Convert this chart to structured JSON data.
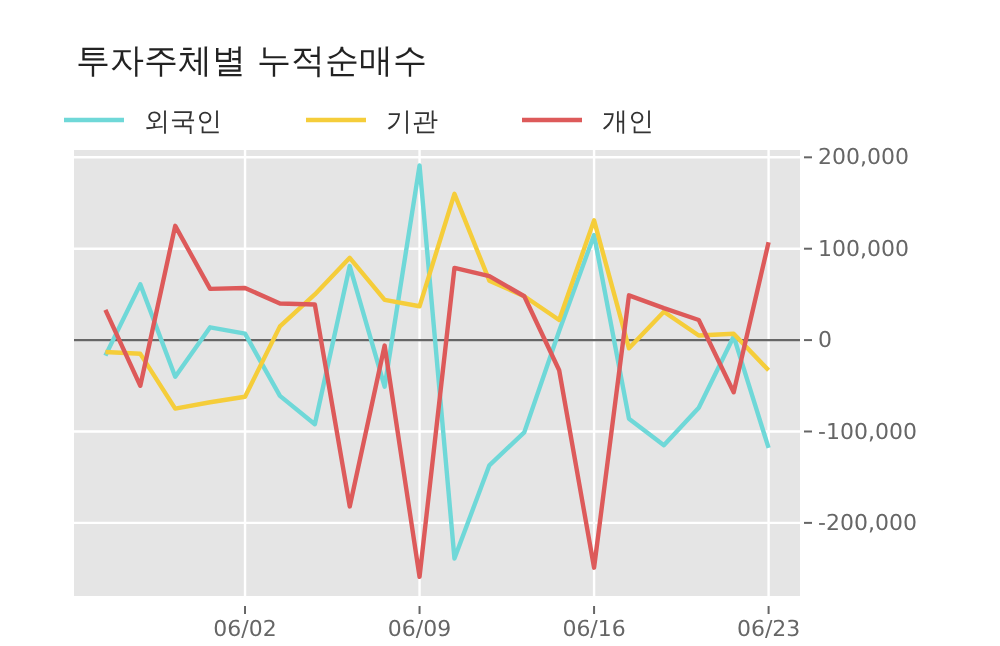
{
  "chart_data": {
    "type": "line",
    "title": "투자주체별 누적순매수",
    "categories": [
      null,
      null,
      null,
      null,
      "06/02",
      null,
      null,
      null,
      null,
      "06/09",
      null,
      null,
      null,
      null,
      "06/16",
      null,
      null,
      null,
      null,
      "06/23"
    ],
    "series": [
      {
        "name": "외국인",
        "color": "#6fd8d8",
        "values": [
          -17000,
          61000,
          -40000,
          14000,
          7000,
          -61000,
          -92000,
          81000,
          -51000,
          191000,
          -239000,
          -137000,
          -101000,
          10000,
          115000,
          -86000,
          -115000,
          -74000,
          4000,
          -118000
        ]
      },
      {
        "name": "기관",
        "color": "#f5cd3a",
        "values": [
          -13000,
          -15000,
          -75000,
          -68000,
          -62000,
          15000,
          50000,
          90000,
          44000,
          37000,
          160000,
          65000,
          48000,
          22000,
          131000,
          -9000,
          31000,
          5000,
          7000,
          -33000
        ]
      },
      {
        "name": "개인",
        "color": "#dd5a5a",
        "values": [
          33000,
          -50000,
          125000,
          56000,
          57000,
          40000,
          39000,
          -182000,
          -6000,
          -259000,
          79000,
          70000,
          48000,
          -33000,
          -249000,
          49000,
          35000,
          22000,
          -57000,
          107000
        ]
      }
    ],
    "ylim": [
      -280000,
      208000
    ],
    "yticks": [
      {
        "value": -200000,
        "label": "-200,000"
      },
      {
        "value": -100000,
        "label": "-100,000"
      },
      0,
      {
        "value": 100000,
        "label": "100,000"
      },
      {
        "value": 200000,
        "label": "200,000"
      }
    ],
    "ref_lines": [
      {
        "axis": "y",
        "value": 0,
        "color": "#666666"
      }
    ],
    "grid": true,
    "legend": "top left",
    "line_style": "solid",
    "marker": "none"
  }
}
